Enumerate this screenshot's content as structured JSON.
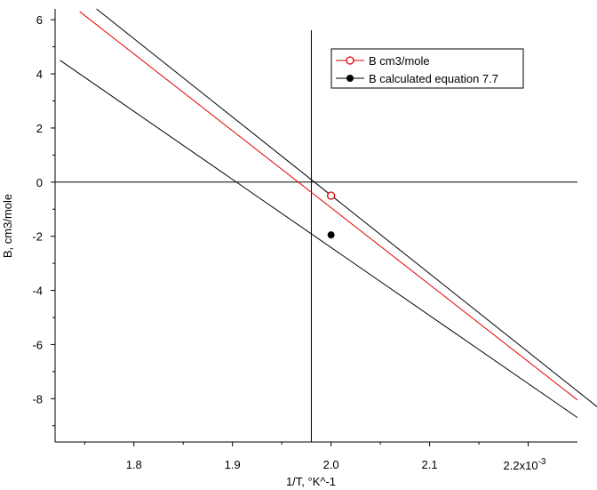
{
  "chart_data": {
    "type": "line",
    "xlabel": "1/T, °K^-1",
    "ylabel": "B, cm3/mole",
    "xlim": [
      1.72,
      2.25
    ],
    "ylim": [
      -9.6,
      6.4
    ],
    "xticks": [
      {
        "value": 1.8,
        "label": "1.8"
      },
      {
        "value": 1.9,
        "label": "1.9"
      },
      {
        "value": 2.0,
        "label": "2.0"
      },
      {
        "value": 2.1,
        "label": "2.1"
      }
    ],
    "xtick_last": {
      "value": 2.2,
      "base": "2.2x10",
      "exp": "-3"
    },
    "yticks": [
      {
        "value": 6,
        "label": "6"
      },
      {
        "value": 4,
        "label": "4"
      },
      {
        "value": 2,
        "label": "2"
      },
      {
        "value": 0,
        "label": "0"
      },
      {
        "value": -2,
        "label": "-2"
      },
      {
        "value": -4,
        "label": "-4"
      },
      {
        "value": -6,
        "label": "-6"
      },
      {
        "value": -8,
        "label": "-8"
      }
    ],
    "series": [
      {
        "name": "B cm3/mole",
        "color": "#e00000",
        "marker": "open-circle",
        "x": [
          2.0
        ],
        "y": [
          -0.5
        ]
      },
      {
        "name": "B calculated equation 7.7",
        "color": "#000000",
        "marker": "filled-circle",
        "x": [
          2.0
        ],
        "y": [
          -1.95
        ]
      }
    ],
    "lines": [
      {
        "color": "#e00000",
        "x": [
          1.745,
          2.25
        ],
        "y": [
          6.3,
          -8.05
        ]
      },
      {
        "color": "#000000",
        "x": [
          1.762,
          2.27
        ],
        "y": [
          6.4,
          -8.3
        ]
      },
      {
        "color": "#000000",
        "x": [
          1.725,
          2.25
        ],
        "y": [
          4.5,
          -8.7
        ]
      }
    ],
    "reference_lines": {
      "horizontal_y": 0,
      "vertical_x": 1.98
    },
    "legend_position": "top-right",
    "grid": false
  }
}
